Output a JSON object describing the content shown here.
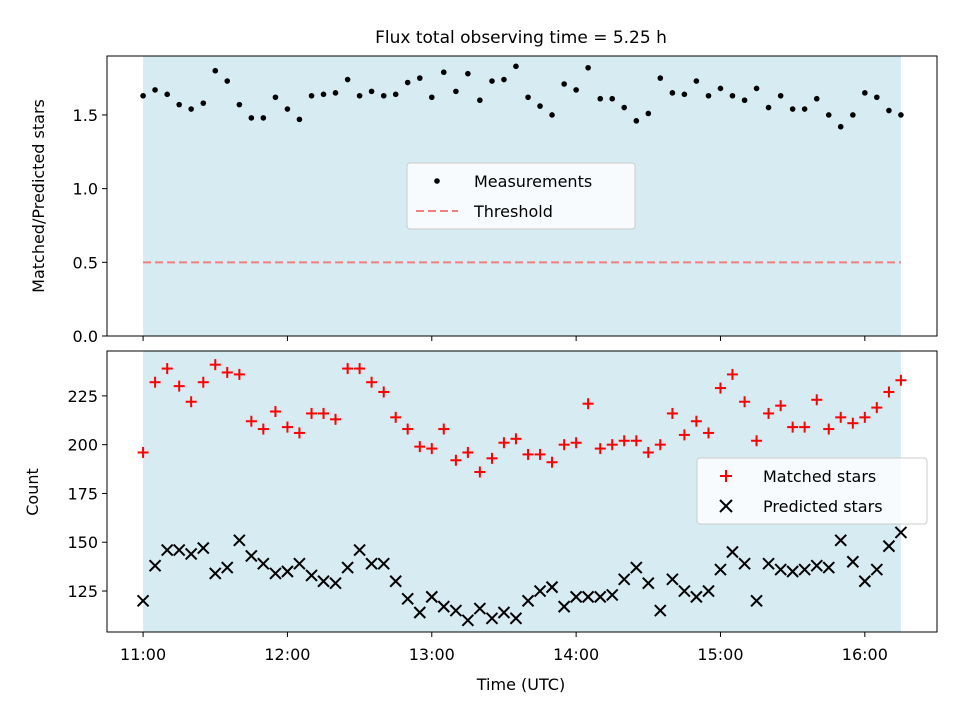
{
  "chart_data": [
    {
      "type": "scatter",
      "title": "Flux total observing time = 5.25 h",
      "xlabel": "",
      "ylabel": "Matched/Predicted stars",
      "ylim": [
        0,
        1.9
      ],
      "yticks": [
        0.0,
        0.5,
        1.0,
        1.5
      ],
      "ytick_labels": [
        "0.0",
        "0.5",
        "1.0",
        "1.5"
      ],
      "xlim": [
        10.75,
        16.5
      ],
      "xticks": [
        11,
        12,
        13,
        14,
        15,
        16
      ],
      "shaded_span": [
        11.0,
        16.25
      ],
      "legend_placement": "center",
      "threshold": 0.5,
      "series": [
        {
          "name": "Measurements",
          "marker": "dot",
          "color": "#000000",
          "x": [
            11.0,
            11.083,
            11.167,
            11.25,
            11.333,
            11.417,
            11.5,
            11.583,
            11.667,
            11.75,
            11.833,
            11.917,
            12.0,
            12.083,
            12.167,
            12.25,
            12.333,
            12.417,
            12.5,
            12.583,
            12.667,
            12.75,
            12.833,
            12.917,
            13.0,
            13.083,
            13.167,
            13.25,
            13.333,
            13.417,
            13.5,
            13.583,
            13.667,
            13.75,
            13.833,
            13.917,
            14.0,
            14.083,
            14.167,
            14.25,
            14.333,
            14.417,
            14.5,
            14.583,
            14.667,
            14.75,
            14.833,
            14.917,
            15.0,
            15.083,
            15.167,
            15.25,
            15.333,
            15.417,
            15.5,
            15.583,
            15.667,
            15.75,
            15.833,
            15.917,
            16.0,
            16.083,
            16.167,
            16.25
          ],
          "y": [
            1.63,
            1.67,
            1.64,
            1.57,
            1.54,
            1.58,
            1.8,
            1.73,
            1.57,
            1.48,
            1.48,
            1.62,
            1.54,
            1.47,
            1.63,
            1.64,
            1.65,
            1.74,
            1.63,
            1.66,
            1.63,
            1.64,
            1.72,
            1.75,
            1.62,
            1.79,
            1.66,
            1.78,
            1.6,
            1.73,
            1.74,
            1.83,
            1.62,
            1.56,
            1.5,
            1.71,
            1.67,
            1.82,
            1.61,
            1.61,
            1.55,
            1.46,
            1.51,
            1.75,
            1.65,
            1.64,
            1.73,
            1.63,
            1.68,
            1.63,
            1.6,
            1.68,
            1.55,
            1.63,
            1.54,
            1.54,
            1.61,
            1.5,
            1.42,
            1.5,
            1.65,
            1.62,
            1.53,
            1.5
          ]
        },
        {
          "name": "Threshold",
          "marker": "dashed-line",
          "color": "#f08080",
          "x": [
            11.0,
            16.25
          ],
          "y": [
            0.5,
            0.5
          ]
        }
      ]
    },
    {
      "type": "scatter",
      "title": "",
      "xlabel": "Time (UTC)",
      "ylabel": "Count",
      "ylim": [
        104,
        248
      ],
      "yticks": [
        125,
        150,
        175,
        200,
        225
      ],
      "ytick_labels": [
        "125",
        "150",
        "175",
        "200",
        "225"
      ],
      "xlim": [
        10.75,
        16.5
      ],
      "xticks": [
        11,
        12,
        13,
        14,
        15,
        16
      ],
      "xtick_labels": [
        "11:00",
        "12:00",
        "13:00",
        "14:00",
        "15:00",
        "16:00"
      ],
      "shaded_span": [
        11.0,
        16.25
      ],
      "legend_placement": "center-right",
      "series": [
        {
          "name": "Matched stars",
          "marker": "plus",
          "color": "#ff0000",
          "x": [
            11.0,
            11.083,
            11.167,
            11.25,
            11.333,
            11.417,
            11.5,
            11.583,
            11.667,
            11.75,
            11.833,
            11.917,
            12.0,
            12.083,
            12.167,
            12.25,
            12.333,
            12.417,
            12.5,
            12.583,
            12.667,
            12.75,
            12.833,
            12.917,
            13.0,
            13.083,
            13.167,
            13.25,
            13.333,
            13.417,
            13.5,
            13.583,
            13.667,
            13.75,
            13.833,
            13.917,
            14.0,
            14.083,
            14.167,
            14.25,
            14.333,
            14.417,
            14.5,
            14.583,
            14.667,
            14.75,
            14.833,
            14.917,
            15.0,
            15.083,
            15.167,
            15.25,
            15.333,
            15.417,
            15.5,
            15.583,
            15.667,
            15.75,
            15.833,
            15.917,
            16.0,
            16.083,
            16.167,
            16.25
          ],
          "y": [
            196,
            232,
            239,
            230,
            222,
            232,
            241,
            237,
            236,
            212,
            208,
            217,
            209,
            206,
            216,
            216,
            213,
            239,
            239,
            232,
            227,
            214,
            208,
            199,
            198,
            208,
            192,
            196,
            186,
            193,
            201,
            203,
            195,
            195,
            191,
            200,
            201,
            221,
            198,
            200,
            202,
            202,
            196,
            200,
            216,
            205,
            212,
            206,
            229,
            236,
            222,
            202,
            216,
            220,
            209,
            209,
            223,
            208,
            214,
            211,
            214,
            219,
            227,
            233
          ]
        },
        {
          "name": "Predicted stars",
          "marker": "x",
          "color": "#000000",
          "x": [
            11.0,
            11.083,
            11.167,
            11.25,
            11.333,
            11.417,
            11.5,
            11.583,
            11.667,
            11.75,
            11.833,
            11.917,
            12.0,
            12.083,
            12.167,
            12.25,
            12.333,
            12.417,
            12.5,
            12.583,
            12.667,
            12.75,
            12.833,
            12.917,
            13.0,
            13.083,
            13.167,
            13.25,
            13.333,
            13.417,
            13.5,
            13.583,
            13.667,
            13.75,
            13.833,
            13.917,
            14.0,
            14.083,
            14.167,
            14.25,
            14.333,
            14.417,
            14.5,
            14.583,
            14.667,
            14.75,
            14.833,
            14.917,
            15.0,
            15.083,
            15.167,
            15.25,
            15.333,
            15.417,
            15.5,
            15.583,
            15.667,
            15.75,
            15.833,
            15.917,
            16.0,
            16.083,
            16.167,
            16.25
          ],
          "y": [
            120,
            138,
            146,
            146,
            144,
            147,
            134,
            137,
            151,
            143,
            139,
            134,
            135,
            139,
            133,
            130,
            129,
            137,
            146,
            139,
            139,
            130,
            121,
            114,
            122,
            117,
            115,
            110,
            116,
            111,
            114,
            111,
            120,
            125,
            127,
            117,
            122,
            122,
            122,
            123,
            131,
            137,
            129,
            115,
            131,
            125,
            122,
            125,
            136,
            145,
            139,
            120,
            139,
            136,
            135,
            136,
            138,
            137,
            151,
            140,
            130,
            136,
            148,
            155
          ]
        }
      ]
    }
  ]
}
